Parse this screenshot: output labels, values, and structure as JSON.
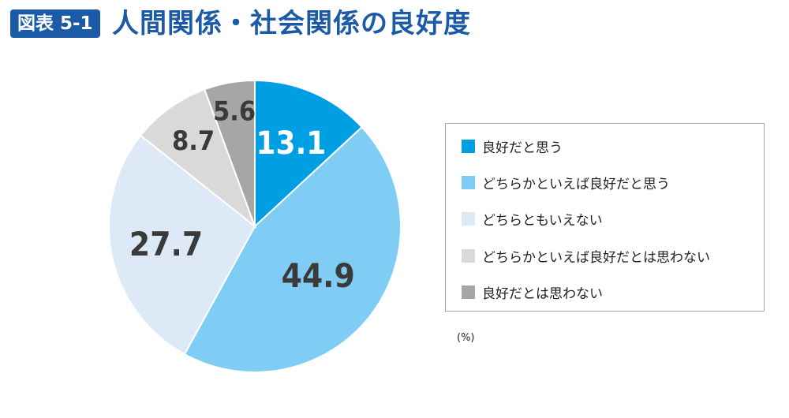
{
  "header": {
    "badge": "図表 5-1",
    "title": "人間関係・社会関係の良好度"
  },
  "legend": {
    "items": [
      {
        "label": "良好だと思う",
        "color": "#009fe3"
      },
      {
        "label": "どちらかといえば良好だと思う",
        "color": "#7fcdf4"
      },
      {
        "label": "どちらともいえない",
        "color": "#dde9f6"
      },
      {
        "label": "どちらかといえば良好だとは思わない",
        "color": "#d9d9d9"
      },
      {
        "label": "良好だとは思わない",
        "color": "#a6a6a6"
      }
    ]
  },
  "unit_note": "(%)",
  "chart_data": {
    "type": "pie",
    "title": "人間関係・社会関係の良好度",
    "unit": "%",
    "categories": [
      "良好だと思う",
      "どちらかといえば良好だと思う",
      "どちらともいえない",
      "どちらかといえば良好だとは思わない",
      "良好だとは思わない"
    ],
    "values": [
      13.1,
      44.9,
      27.7,
      8.7,
      5.6
    ],
    "labels": [
      "13.1",
      "44.9",
      "27.7",
      "8.7",
      "5.6"
    ],
    "colors": [
      "#009fe3",
      "#7fcdf4",
      "#dde9f6",
      "#d9d9d9",
      "#a6a6a6"
    ],
    "label_colors": [
      "#ffffff",
      "#3a3a3a",
      "#3a3a3a",
      "#3a3a3a",
      "#3a3a3a"
    ],
    "start_angle": "12 o'clock, clockwise",
    "legend_position": "right"
  }
}
